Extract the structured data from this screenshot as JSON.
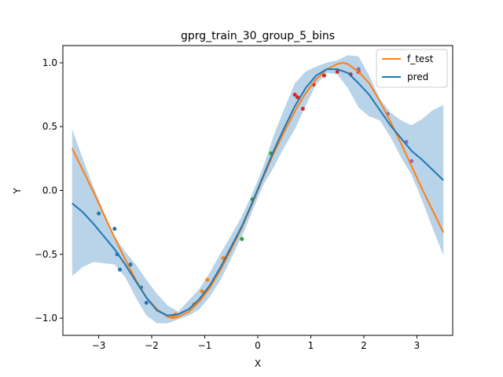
{
  "chart_data": {
    "type": "line",
    "title": "gprg_train_30_group_5_bins",
    "xlabel": "X",
    "ylabel": "Y",
    "xlim": [
      -3.675,
      3.675
    ],
    "ylim": [
      -1.135,
      1.135
    ],
    "xticks": [
      -3,
      -2,
      -1,
      0,
      1,
      2,
      3
    ],
    "xtick_labels": [
      "−3",
      "−2",
      "−1",
      "0",
      "1",
      "2",
      "3"
    ],
    "yticks": [
      -1.0,
      -0.5,
      0.0,
      0.5,
      1.0
    ],
    "ytick_labels": [
      "−1.0",
      "−0.5",
      "0.0",
      "0.5",
      "1.0"
    ],
    "grid": false,
    "legend_position": "top-right",
    "series": [
      {
        "name": "f_test",
        "kind": "line",
        "color": "#ff7f0e",
        "x": [
          -3.5,
          -3.3,
          -3.1,
          -2.9,
          -2.7,
          -2.5,
          -2.3,
          -2.1,
          -1.9,
          -1.7,
          -1.6,
          -1.5,
          -1.3,
          -1.1,
          -0.9,
          -0.7,
          -0.5,
          -0.3,
          -0.1,
          0.1,
          0.3,
          0.5,
          0.7,
          0.9,
          1.1,
          1.3,
          1.5,
          1.6,
          1.7,
          1.9,
          2.1,
          2.3,
          2.5,
          2.7,
          2.9,
          3.1,
          3.3,
          3.5
        ],
        "y": [
          0.33,
          0.16,
          -0.01,
          -0.19,
          -0.37,
          -0.54,
          -0.7,
          -0.84,
          -0.93,
          -0.99,
          -1.0,
          -0.99,
          -0.95,
          -0.87,
          -0.76,
          -0.62,
          -0.46,
          -0.29,
          -0.1,
          0.1,
          0.29,
          0.46,
          0.62,
          0.76,
          0.87,
          0.95,
          0.99,
          1.0,
          0.99,
          0.93,
          0.84,
          0.7,
          0.54,
          0.37,
          0.19,
          0.01,
          -0.16,
          -0.33
        ]
      },
      {
        "name": "pred",
        "kind": "line",
        "color": "#1f77b4",
        "x": [
          -3.5,
          -3.3,
          -3.1,
          -2.9,
          -2.7,
          -2.5,
          -2.3,
          -2.1,
          -1.9,
          -1.7,
          -1.5,
          -1.3,
          -1.1,
          -0.9,
          -0.7,
          -0.5,
          -0.3,
          -0.1,
          0.1,
          0.3,
          0.5,
          0.7,
          0.9,
          1.1,
          1.3,
          1.5,
          1.7,
          1.9,
          2.1,
          2.3,
          2.5,
          2.7,
          2.9,
          3.1,
          3.3,
          3.5
        ],
        "y": [
          -0.1,
          -0.17,
          -0.26,
          -0.36,
          -0.46,
          -0.58,
          -0.71,
          -0.84,
          -0.94,
          -0.98,
          -0.97,
          -0.93,
          -0.85,
          -0.74,
          -0.6,
          -0.44,
          -0.28,
          -0.09,
          0.11,
          0.31,
          0.49,
          0.66,
          0.8,
          0.9,
          0.95,
          0.95,
          0.92,
          0.84,
          0.75,
          0.63,
          0.51,
          0.41,
          0.31,
          0.24,
          0.16,
          0.08
        ]
      },
      {
        "name": "confidence band",
        "kind": "band",
        "color": "#b9d3e9",
        "x": [
          -3.5,
          -3.3,
          -3.1,
          -2.9,
          -2.7,
          -2.5,
          -2.3,
          -2.1,
          -1.9,
          -1.7,
          -1.5,
          -1.3,
          -1.1,
          -0.9,
          -0.7,
          -0.5,
          -0.3,
          -0.1,
          0.1,
          0.3,
          0.5,
          0.7,
          0.9,
          1.1,
          1.3,
          1.5,
          1.7,
          1.9,
          2.1,
          2.3,
          2.5,
          2.7,
          2.9,
          3.1,
          3.3,
          3.5
        ],
        "upper": [
          0.48,
          0.25,
          0.03,
          -0.17,
          -0.36,
          -0.48,
          -0.58,
          -0.7,
          -0.81,
          -0.9,
          -0.95,
          -0.86,
          -0.77,
          -0.64,
          -0.49,
          -0.35,
          -0.2,
          -0.02,
          0.18,
          0.43,
          0.64,
          0.84,
          0.93,
          0.97,
          1.0,
          1.02,
          1.06,
          1.05,
          0.9,
          0.72,
          0.61,
          0.55,
          0.51,
          0.56,
          0.63,
          0.67
        ],
        "lower": [
          -0.67,
          -0.6,
          -0.56,
          -0.57,
          -0.58,
          -0.68,
          -0.84,
          -0.98,
          -1.04,
          -1.04,
          -1.01,
          -0.98,
          -0.93,
          -0.83,
          -0.7,
          -0.53,
          -0.36,
          -0.16,
          0.04,
          0.18,
          0.34,
          0.48,
          0.66,
          0.83,
          0.92,
          0.91,
          0.8,
          0.65,
          0.58,
          0.55,
          0.42,
          0.26,
          0.12,
          -0.08,
          -0.3,
          -0.51
        ]
      }
    ],
    "points": [
      {
        "color": "#1f77b4",
        "xy": [
          [
            -3.0,
            -0.18
          ],
          [
            -2.7,
            -0.3
          ],
          [
            -2.65,
            -0.5
          ],
          [
            -2.6,
            -0.62
          ],
          [
            -2.4,
            -0.58
          ],
          [
            -2.2,
            -0.76
          ],
          [
            -2.1,
            -0.88
          ]
        ]
      },
      {
        "color": "#ff7f0e",
        "xy": [
          [
            -1.6,
            -0.99
          ],
          [
            -1.55,
            -0.97
          ],
          [
            -1.2,
            -0.89
          ],
          [
            -1.05,
            -0.79
          ],
          [
            -0.95,
            -0.7
          ],
          [
            -0.65,
            -0.53
          ]
        ]
      },
      {
        "color": "#2ca02c",
        "xy": [
          [
            -0.3,
            -0.38
          ],
          [
            -0.1,
            -0.07
          ],
          [
            0.25,
            0.29
          ]
        ]
      },
      {
        "color": "#d62728",
        "xy": [
          [
            0.7,
            0.75
          ],
          [
            0.75,
            0.73
          ],
          [
            0.85,
            0.64
          ],
          [
            1.05,
            0.83
          ],
          [
            1.25,
            0.9
          ],
          [
            1.5,
            0.93
          ],
          [
            1.75,
            0.91
          ],
          [
            1.9,
            0.93
          ]
        ]
      },
      {
        "color": "#9467bd",
        "xy": [
          [
            1.9,
            0.95
          ],
          [
            2.45,
            0.6
          ],
          [
            2.8,
            0.38
          ],
          [
            2.9,
            0.23
          ]
        ]
      }
    ]
  }
}
